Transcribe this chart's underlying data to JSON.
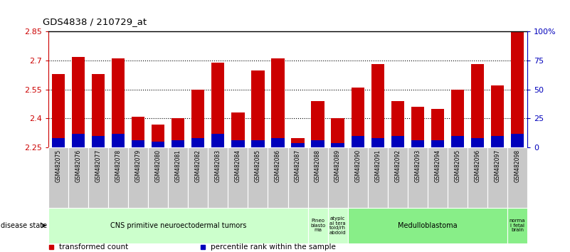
{
  "title": "GDS4838 / 210729_at",
  "samples": [
    "GSM482075",
    "GSM482076",
    "GSM482077",
    "GSM482078",
    "GSM482079",
    "GSM482080",
    "GSM482081",
    "GSM482082",
    "GSM482083",
    "GSM482084",
    "GSM482085",
    "GSM482086",
    "GSM482087",
    "GSM482088",
    "GSM482089",
    "GSM482090",
    "GSM482091",
    "GSM482092",
    "GSM482093",
    "GSM482094",
    "GSM482095",
    "GSM482096",
    "GSM482097",
    "GSM482098"
  ],
  "transformed_count": [
    2.63,
    2.72,
    2.63,
    2.71,
    2.41,
    2.37,
    2.4,
    2.55,
    2.69,
    2.43,
    2.65,
    2.71,
    2.3,
    2.49,
    2.4,
    2.56,
    2.68,
    2.49,
    2.46,
    2.45,
    2.55,
    2.68,
    2.57,
    2.85
  ],
  "percentile_pct": [
    8,
    12,
    10,
    12,
    6,
    5,
    6,
    8,
    12,
    6,
    6,
    8,
    4,
    6,
    4,
    10,
    8,
    10,
    6,
    6,
    10,
    8,
    10,
    12
  ],
  "ylim": [
    2.25,
    2.85
  ],
  "ytick_labels_left": [
    "2.25",
    "2.4",
    "2.55",
    "2.7",
    "2.85"
  ],
  "ytick_vals_left": [
    2.25,
    2.4,
    2.55,
    2.7,
    2.85
  ],
  "ytick_vals_right": [
    0,
    25,
    50,
    75,
    100
  ],
  "ytick_labels_right": [
    "0",
    "25",
    "50",
    "75",
    "100%"
  ],
  "bar_color": "#CC0000",
  "pct_color": "#0000BB",
  "grid_lines": [
    2.4,
    2.55,
    2.7
  ],
  "bar_width": 0.65,
  "disease_groups": [
    {
      "label": "CNS primitive neuroectodermal tumors",
      "start": 0,
      "end": 13,
      "color": "#CCFFCC",
      "fontsize": 7
    },
    {
      "label": "Pineo\nblasto\nma",
      "start": 13,
      "end": 14,
      "color": "#CCFFCC",
      "fontsize": 5
    },
    {
      "label": "atypic\nal tera\ntoid/rh\nabdoid",
      "start": 14,
      "end": 15,
      "color": "#CCFFCC",
      "fontsize": 5
    },
    {
      "label": "Medulloblastoma",
      "start": 15,
      "end": 23,
      "color": "#88EE88",
      "fontsize": 7
    },
    {
      "label": "norma\nl fetal\nbrain",
      "start": 23,
      "end": 24,
      "color": "#88EE88",
      "fontsize": 5
    }
  ],
  "legend_items": [
    {
      "label": "transformed count",
      "color": "#CC0000"
    },
    {
      "label": "percentile rank within the sample",
      "color": "#0000BB"
    }
  ],
  "xtick_bg_color": "#C8C8C8",
  "disease_state_label": "disease state"
}
